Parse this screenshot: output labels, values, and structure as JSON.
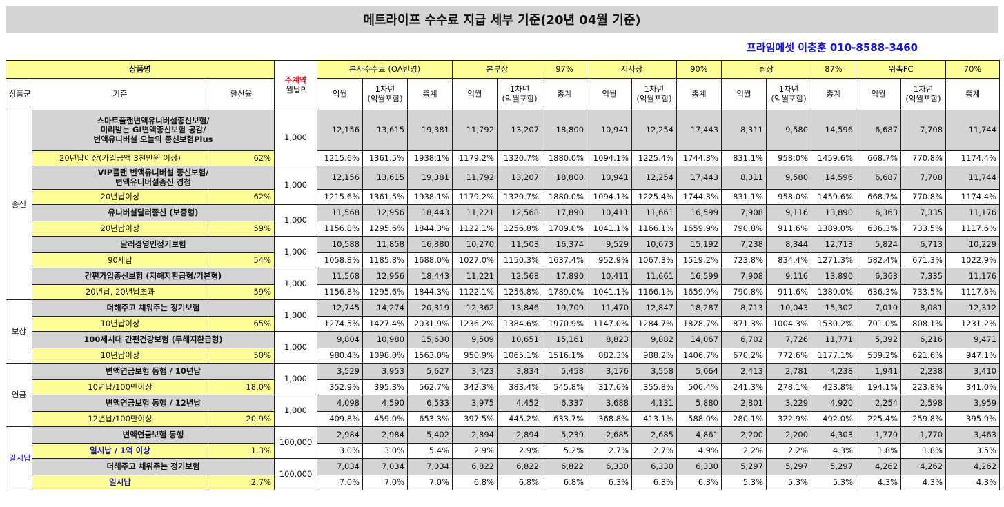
{
  "title": "메트라이프 수수료 지급 세부 기준(20년 04월 기준)",
  "contact": "프라임에셋 이충훈 010-8588-3460",
  "header": {
    "product_name": "상품명",
    "weekly_contract": "주계약",
    "monthly_p": "월납P",
    "groups": [
      {
        "name": "본사수수료 (OA반영)",
        "pct": ""
      },
      {
        "name": "본부장",
        "pct": "97%"
      },
      {
        "name": "지사장",
        "pct": "90%"
      },
      {
        "name": "팀장",
        "pct": "87%"
      },
      {
        "name": "위촉FC",
        "pct": "70%"
      }
    ],
    "product_group": "상품군",
    "criteria": "기준",
    "conversion": "환산율",
    "sub": [
      "익월",
      "1차년\n(익월포함)",
      "총계"
    ]
  },
  "categories": [
    {
      "name": "종신",
      "products": [
        {
          "name": "스마트플랜변액유니버설종신보험/\n미리받는 GI변액종신보험 공감/\n변액유니버설 오늘의 종신보험Plus",
          "criteria": "20년납이상(가입금액 3천만원 이상)",
          "rate": "62%",
          "premium": "1,000",
          "amounts": [
            "12,156",
            "13,615",
            "19,381",
            "11,792",
            "13,207",
            "18,800",
            "10,941",
            "12,254",
            "17,443",
            "8,311",
            "9,580",
            "14,596",
            "6,687",
            "7,708",
            "11,744"
          ],
          "percents": [
            "1215.6%",
            "1361.5%",
            "1938.1%",
            "1179.2%",
            "1320.7%",
            "1880.0%",
            "1094.1%",
            "1225.4%",
            "1744.3%",
            "831.1%",
            "958.0%",
            "1459.6%",
            "668.7%",
            "770.8%",
            "1174.4%"
          ]
        },
        {
          "name": "VIP플랜 변액유니버설 종신보험/\n변액유니버설종신 경청",
          "criteria": "20년납이상",
          "rate": "62%",
          "premium": "1,000",
          "amounts": [
            "12,156",
            "13,615",
            "19,381",
            "11,792",
            "13,207",
            "18,800",
            "10,941",
            "12,254",
            "17,443",
            "8,311",
            "9,580",
            "14,596",
            "6,687",
            "7,708",
            "11,744"
          ],
          "percents": [
            "1215.6%",
            "1361.5%",
            "1938.1%",
            "1179.2%",
            "1320.7%",
            "1880.0%",
            "1094.1%",
            "1225.4%",
            "1744.3%",
            "831.1%",
            "958.0%",
            "1459.6%",
            "668.7%",
            "770.8%",
            "1174.4%"
          ]
        },
        {
          "name": "유니버설달러종신 (보증형)",
          "criteria": "20년납이상",
          "rate": "59%",
          "premium": "1,000",
          "amounts": [
            "11,568",
            "12,956",
            "18,443",
            "11,221",
            "12,568",
            "17,890",
            "10,411",
            "11,661",
            "16,599",
            "7,908",
            "9,116",
            "13,890",
            "6,363",
            "7,335",
            "11,176"
          ],
          "percents": [
            "1156.8%",
            "1295.6%",
            "1844.3%",
            "1122.1%",
            "1256.8%",
            "1789.0%",
            "1041.1%",
            "1166.1%",
            "1659.9%",
            "790.8%",
            "911.6%",
            "1389.0%",
            "636.3%",
            "733.5%",
            "1117.6%"
          ]
        },
        {
          "name": "달러경영인정기보험",
          "criteria": "90세납",
          "rate": "54%",
          "premium": "1,000",
          "amounts": [
            "10,588",
            "11,858",
            "16,880",
            "10,270",
            "11,503",
            "16,374",
            "9,529",
            "10,673",
            "15,192",
            "7,238",
            "8,344",
            "12,713",
            "5,824",
            "6,713",
            "10,229"
          ],
          "percents": [
            "1058.8%",
            "1185.8%",
            "1688.0%",
            "1027.0%",
            "1150.3%",
            "1637.4%",
            "952.9%",
            "1067.3%",
            "1519.2%",
            "723.8%",
            "834.4%",
            "1271.3%",
            "582.4%",
            "671.3%",
            "1022.9%"
          ]
        },
        {
          "name": "간편가입종신보험 (저해지환급형/기본형)",
          "criteria": "20년납, 20년납초과",
          "rate": "59%",
          "premium": "1,000",
          "amounts": [
            "11,568",
            "12,956",
            "18,443",
            "11,221",
            "12,568",
            "17,890",
            "10,411",
            "11,661",
            "16,599",
            "7,908",
            "9,116",
            "13,890",
            "6,363",
            "7,335",
            "11,176"
          ],
          "percents": [
            "1156.8%",
            "1295.6%",
            "1844.3%",
            "1122.1%",
            "1256.8%",
            "1789.0%",
            "1041.1%",
            "1166.1%",
            "1659.9%",
            "790.8%",
            "911.6%",
            "1389.0%",
            "636.3%",
            "733.5%",
            "1117.6%"
          ]
        }
      ]
    },
    {
      "name": "보장",
      "products": [
        {
          "name": "더해주고 채워주는 정기보험",
          "criteria": "10년납이상",
          "rate": "65%",
          "premium": "1,000",
          "amounts": [
            "12,745",
            "14,274",
            "20,319",
            "12,362",
            "13,846",
            "19,709",
            "11,470",
            "12,847",
            "18,287",
            "8,713",
            "10,043",
            "15,302",
            "7,010",
            "8,081",
            "12,312"
          ],
          "percents": [
            "1274.5%",
            "1427.4%",
            "2031.9%",
            "1236.2%",
            "1384.6%",
            "1970.9%",
            "1147.0%",
            "1284.7%",
            "1828.7%",
            "871.3%",
            "1004.3%",
            "1530.2%",
            "701.0%",
            "808.1%",
            "1231.2%"
          ]
        },
        {
          "name": "100세시대 간편건강보험 (무해지환급형)",
          "criteria": "10년납이상",
          "rate": "50%",
          "premium": "1,000",
          "amounts": [
            "9,804",
            "10,980",
            "15,630",
            "9,509",
            "10,651",
            "15,161",
            "8,823",
            "9,882",
            "14,067",
            "6,702",
            "7,726",
            "11,771",
            "5,392",
            "6,216",
            "9,471"
          ],
          "percents": [
            "980.4%",
            "1098.0%",
            "1563.0%",
            "950.9%",
            "1065.1%",
            "1516.1%",
            "882.3%",
            "988.2%",
            "1406.7%",
            "670.2%",
            "772.6%",
            "1177.1%",
            "539.2%",
            "621.6%",
            "947.1%"
          ]
        }
      ]
    },
    {
      "name": "연금",
      "products": [
        {
          "name": "변액연금보험 동행 / 10년납",
          "criteria": "10년납/100만이상",
          "rate": "18.0%",
          "premium": "1,000",
          "amounts": [
            "3,529",
            "3,953",
            "5,627",
            "3,423",
            "3,834",
            "5,458",
            "3,176",
            "3,558",
            "5,064",
            "2,413",
            "2,781",
            "4,238",
            "1,941",
            "2,238",
            "3,410"
          ],
          "percents": [
            "352.9%",
            "395.3%",
            "562.7%",
            "342.3%",
            "383.4%",
            "545.8%",
            "317.6%",
            "355.8%",
            "506.4%",
            "241.3%",
            "278.1%",
            "423.8%",
            "194.1%",
            "223.8%",
            "341.0%"
          ]
        },
        {
          "name": "변액연금보험 동행 / 12년납",
          "criteria": "12년납/100만이상",
          "rate": "20.9%",
          "premium": "1,000",
          "amounts": [
            "4,098",
            "4,590",
            "6,533",
            "3,975",
            "4,452",
            "6,337",
            "3,688",
            "4,131",
            "5,880",
            "2,801",
            "3,229",
            "4,920",
            "2,254",
            "2,598",
            "3,959"
          ],
          "percents": [
            "409.8%",
            "459.0%",
            "653.3%",
            "397.5%",
            "445.2%",
            "633.7%",
            "368.8%",
            "413.1%",
            "588.0%",
            "280.1%",
            "322.9%",
            "492.0%",
            "225.4%",
            "259.8%",
            "395.9%"
          ]
        }
      ]
    },
    {
      "name": "일시납",
      "products": [
        {
          "name": "변액연금보험 동행",
          "criteria": "일시납 / 1억 이상",
          "rate": "1.3%",
          "premium": "100,000",
          "amounts": [
            "2,984",
            "2,984",
            "5,402",
            "2,894",
            "2,894",
            "5,239",
            "2,685",
            "2,685",
            "4,861",
            "2,200",
            "2,200",
            "4,303",
            "1,770",
            "1,770",
            "3,463"
          ],
          "percents": [
            "3.0%",
            "3.0%",
            "5.4%",
            "2.9%",
            "2.9%",
            "5.2%",
            "2.7%",
            "2.7%",
            "4.9%",
            "2.2%",
            "2.2%",
            "4.3%",
            "1.8%",
            "1.8%",
            "3.5%"
          ]
        },
        {
          "name": "더해주고 채워주는 정기보험",
          "criteria": "일시납",
          "rate": "2.7%",
          "premium": "100,000",
          "amounts": [
            "7,034",
            "7,034",
            "7,034",
            "6,822",
            "6,822",
            "6,822",
            "6,330",
            "6,330",
            "6,330",
            "5,297",
            "5,297",
            "5,297",
            "4,262",
            "4,262",
            "4,262"
          ],
          "percents": [
            "7.0%",
            "7.0%",
            "7.0%",
            "6.8%",
            "6.8%",
            "6.8%",
            "6.3%",
            "6.3%",
            "6.3%",
            "5.3%",
            "5.3%",
            "5.3%",
            "4.3%",
            "4.3%",
            "4.3%"
          ]
        }
      ]
    }
  ]
}
